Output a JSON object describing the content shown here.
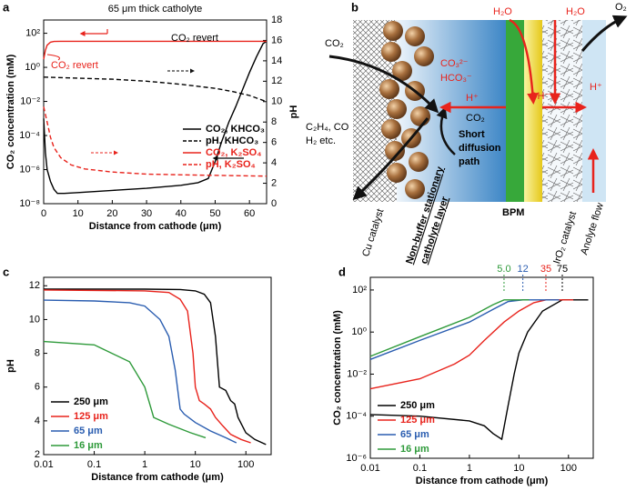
{
  "chart_data": [
    {
      "panel": "a",
      "type": "line",
      "title": "65 μm thick catholyte",
      "xlabel": "Distance from cathode (μm)",
      "ylabel": "CO₂ concentration (mM)",
      "y2label": "pH",
      "xlim": [
        0,
        65
      ],
      "xticks": [
        0,
        10,
        20,
        30,
        40,
        50,
        60
      ],
      "ylog": true,
      "ylim": [
        1e-08,
        600
      ],
      "yticks": [
        {
          "value": 1e-08,
          "label": "10⁻⁸"
        },
        {
          "value": 1e-06,
          "label": "10⁻⁶"
        },
        {
          "value": 0.0001,
          "label": "10⁻⁴"
        },
        {
          "value": 0.01,
          "label": "10⁻²"
        },
        {
          "value": 1,
          "label": "10⁰"
        },
        {
          "value": 100,
          "label": "10²"
        }
      ],
      "y2lim": [
        0,
        18
      ],
      "y2ticks": [
        0,
        2,
        4,
        6,
        8,
        10,
        12,
        14,
        16,
        18
      ],
      "legend": "center right",
      "series": [
        {
          "name": "CO₂, KHCO₃",
          "color": "#000000",
          "style": "solid",
          "x": [
            0,
            0.5,
            1,
            2,
            3,
            4,
            6,
            10,
            20,
            30,
            40,
            45,
            48,
            50,
            52,
            54,
            56,
            58,
            60,
            62,
            64,
            65
          ],
          "values": [
            0.001,
            1e-05,
            1e-06,
            2e-07,
            7e-08,
            4e-08,
            4e-08,
            4.5e-08,
            6e-08,
            8e-08,
            1.2e-07,
            1.7e-07,
            3e-07,
            3e-06,
            5e-05,
            0.0006,
            0.005,
            0.05,
            0.5,
            4,
            25,
            34
          ]
        },
        {
          "name": "pH, KHCO₃",
          "color": "#000000",
          "style": "dashed",
          "axis": "y2",
          "x": [
            0,
            10,
            20,
            30,
            40,
            50,
            55,
            60,
            65
          ],
          "values": [
            12.4,
            12.3,
            12.2,
            12.0,
            11.7,
            11.3,
            11.0,
            10.6,
            10.0
          ]
        },
        {
          "name": "CO₂, K₂SO₄",
          "color": "#e8231c",
          "style": "solid",
          "x": [
            0,
            0.5,
            1,
            2,
            3,
            5,
            65
          ],
          "values": [
            3,
            10,
            20,
            30,
            33,
            34,
            34
          ]
        },
        {
          "name": "pH, K₂SO₄",
          "color": "#e8231c",
          "style": "dashed",
          "axis": "y2",
          "x": [
            0,
            1,
            2,
            3,
            5,
            8,
            12,
            20,
            30,
            45,
            65
          ],
          "values": [
            9.5,
            8,
            6.5,
            5.5,
            4.5,
            3.8,
            3.4,
            3.1,
            2.9,
            2.8,
            2.7
          ]
        }
      ],
      "annotations": [
        {
          "text": "CO₂ revert",
          "color": "#e8231c"
        },
        {
          "text": "CO₂ revert",
          "color": "#000000"
        }
      ]
    },
    {
      "panel": "c",
      "type": "line",
      "xlabel": "Distance from cathode (μm)",
      "ylabel": "pH",
      "xlog": true,
      "xlim": [
        0.01,
        316
      ],
      "xticks": [
        0.01,
        0.1,
        1,
        10,
        100
      ],
      "ylim": [
        2,
        12.5
      ],
      "yticks": [
        2,
        4,
        6,
        8,
        10,
        12
      ],
      "legend": "lower left",
      "series": [
        {
          "name": "250 μm",
          "color": "#000000",
          "style": "solid",
          "x": [
            0.01,
            1,
            5,
            10,
            15,
            20,
            25,
            30,
            40,
            50,
            60,
            70,
            100,
            150,
            250
          ],
          "values": [
            11.8,
            11.8,
            11.78,
            11.7,
            11.5,
            11,
            9,
            6,
            5.8,
            5.2,
            5,
            4.2,
            3.3,
            2.9,
            2.6
          ]
        },
        {
          "name": "125 μm",
          "color": "#e8231c",
          "style": "solid",
          "x": [
            0.01,
            1,
            3,
            5,
            7,
            9,
            10,
            12,
            15,
            20,
            25,
            35,
            50,
            80,
            125
          ],
          "values": [
            11.75,
            11.7,
            11.6,
            11.2,
            10.5,
            8,
            6,
            5.2,
            5,
            4.7,
            4.2,
            3.7,
            3.2,
            2.9,
            2.7
          ]
        },
        {
          "name": "65 μm",
          "color": "#2a5db0",
          "style": "solid",
          "x": [
            0.01,
            0.1,
            0.5,
            1,
            2,
            3,
            4,
            5,
            6,
            10,
            20,
            40,
            65
          ],
          "values": [
            11.15,
            11.1,
            11,
            10.8,
            10,
            9,
            7,
            4.7,
            4.4,
            3.9,
            3.4,
            3,
            2.7
          ]
        },
        {
          "name": "16 μm",
          "color": "#2e9a3a",
          "style": "solid",
          "x": [
            0.01,
            0.1,
            0.5,
            1,
            1.5,
            3,
            8,
            16
          ],
          "values": [
            8.7,
            8.5,
            7.5,
            6,
            4.2,
            3.8,
            3.3,
            3
          ]
        }
      ]
    },
    {
      "panel": "d",
      "type": "line",
      "xlabel": "Distance from cathode (μm)",
      "ylabel": "CO₂ concentration (mM)",
      "xlog": true,
      "xlim": [
        0.01,
        316
      ],
      "xticks": [
        0.01,
        0.1,
        1,
        10,
        100
      ],
      "ylog": true,
      "ylim": [
        1e-06,
        400
      ],
      "yticks": [
        {
          "value": 1e-06,
          "label": "10⁻⁶"
        },
        {
          "value": 0.0001,
          "label": "10⁻⁴"
        },
        {
          "value": 0.01,
          "label": "10⁻²"
        },
        {
          "value": 1,
          "label": "10⁰"
        },
        {
          "value": 100,
          "label": "10²"
        }
      ],
      "legend": "lower left",
      "series": [
        {
          "name": "250 μm",
          "color": "#000000",
          "style": "solid",
          "x": [
            0.01,
            0.1,
            1,
            2,
            3,
            4.5,
            6,
            8,
            10,
            15,
            30,
            75,
            250
          ],
          "values": [
            0.00012,
            0.0001,
            6e-05,
            3.5e-05,
            1.5e-05,
            8e-06,
            0.0003,
            0.01,
            0.1,
            1,
            10,
            34,
            34
          ]
        },
        {
          "name": "125 μm",
          "color": "#e8231c",
          "style": "solid",
          "x": [
            0.01,
            0.1,
            0.5,
            1,
            2,
            5,
            10,
            20,
            35,
            125
          ],
          "values": [
            0.002,
            0.006,
            0.03,
            0.08,
            0.4,
            3,
            10,
            25,
            34,
            34
          ]
        },
        {
          "name": "65 μm",
          "color": "#2a5db0",
          "style": "solid",
          "x": [
            0.01,
            0.1,
            1,
            3,
            6,
            12,
            65
          ],
          "values": [
            0.05,
            0.4,
            3,
            12,
            28,
            34,
            34
          ]
        },
        {
          "name": "16 μm",
          "color": "#2e9a3a",
          "style": "solid",
          "x": [
            0.01,
            0.1,
            1,
            3,
            5,
            16
          ],
          "values": [
            0.07,
            0.6,
            5,
            20,
            34,
            34
          ]
        }
      ],
      "markers": [
        {
          "value": 5,
          "label": "5.0",
          "color": "#2e9a3a"
        },
        {
          "value": 12,
          "label": "12",
          "color": "#2a5db0"
        },
        {
          "value": 35,
          "label": "35",
          "color": "#e8231c"
        },
        {
          "value": 75,
          "label": "75",
          "color": "#000000"
        }
      ]
    }
  ],
  "diagram": {
    "panel": "b",
    "labels": {
      "h2o_left": "H₂O",
      "h2o_right": "H₂O",
      "o2": "O₂",
      "co2_in": "CO₂",
      "co3": "CO₃²⁻",
      "hco3": "HCO₃⁻",
      "h_plus_left": "H⁺",
      "oh": "OH⁻",
      "h_plus_right": "H⁺",
      "co2_back": "CO₂",
      "products_1": "C₂H₄, CO",
      "products_2": "H₂ etc.",
      "short_1": "Short",
      "short_2": "diffusion",
      "short_3": "path",
      "cu": "Cu catalyst",
      "layer_1": "Non-buffer stationary",
      "layer_2": "catholyte layer",
      "bpm": "BPM",
      "iro2": "IrO₂ catalyst",
      "anolyte": "Anolyte flow"
    }
  }
}
